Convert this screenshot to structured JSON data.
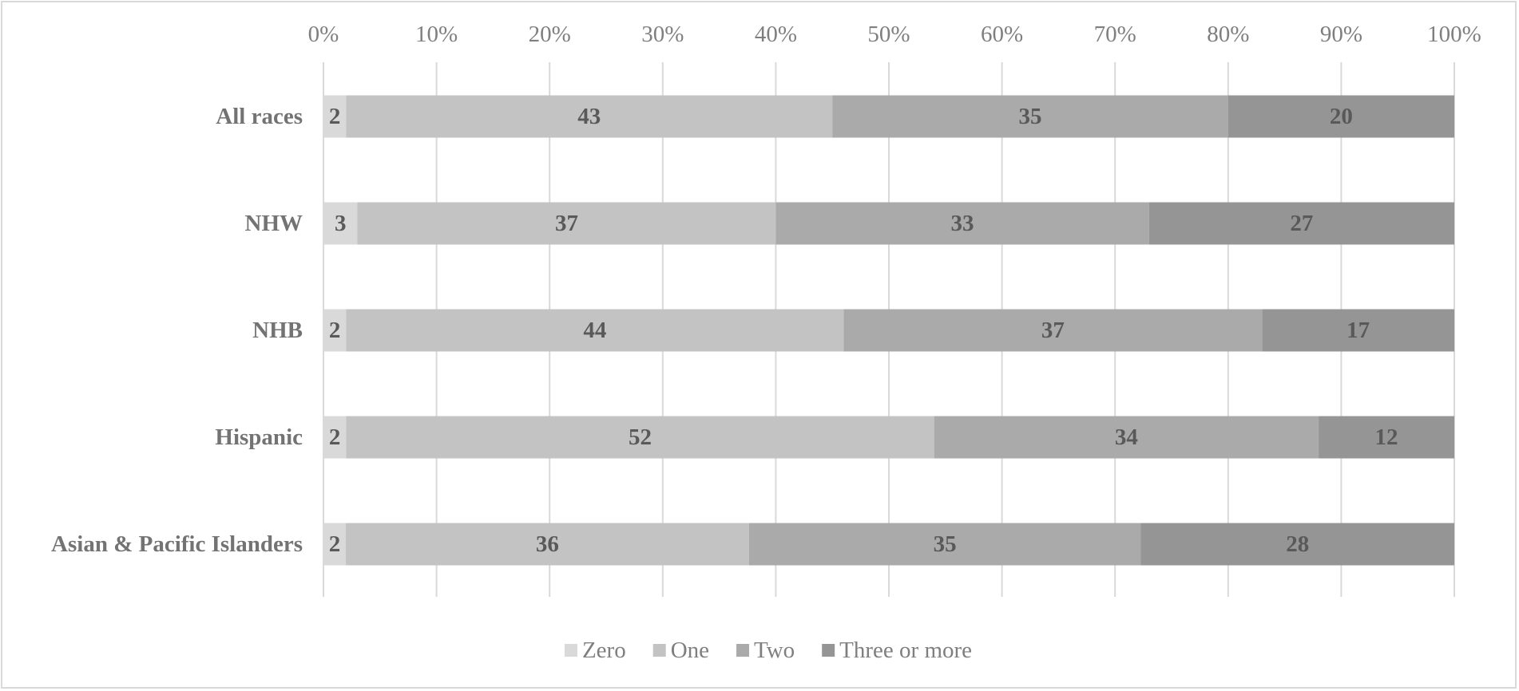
{
  "chart_data": {
    "type": "bar",
    "orientation": "horizontal",
    "stacked": "percent",
    "categories": [
      "All races",
      "NHW",
      "NHB",
      "Hispanic",
      "Asian & Pacific Islanders"
    ],
    "series": [
      {
        "name": "Zero",
        "values": [
          2,
          3,
          2,
          2,
          2
        ],
        "color": "#d9d9d9"
      },
      {
        "name": "One",
        "values": [
          43,
          37,
          44,
          52,
          36
        ],
        "color": "#c3c3c3"
      },
      {
        "name": "Two",
        "values": [
          35,
          33,
          37,
          34,
          35
        ],
        "color": "#aaaaaa"
      },
      {
        "name": "Three or more",
        "values": [
          20,
          27,
          17,
          12,
          28
        ],
        "color": "#959595"
      }
    ],
    "xlim": [
      0,
      100
    ],
    "x_ticks": [
      "0%",
      "10%",
      "20%",
      "30%",
      "40%",
      "50%",
      "60%",
      "70%",
      "80%",
      "90%",
      "100%"
    ],
    "grid": true,
    "legend_position": "bottom",
    "title": "",
    "xlabel": "",
    "ylabel": ""
  }
}
